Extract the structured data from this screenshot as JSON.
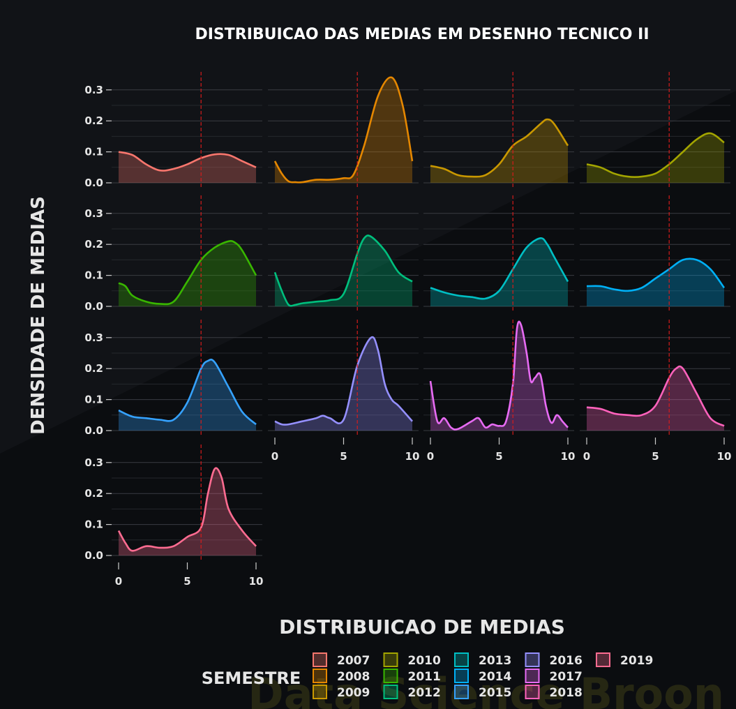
{
  "chart_data": {
    "type": "area",
    "title": "DISTRIBUICAO DAS MEDIAS EM DESENHO TECNICO II",
    "xlabel": "DISTRIBUICAO DE MEDIAS",
    "ylabel": "DENSIDADE DE MEDIAS",
    "xlim": [
      0,
      10
    ],
    "ylim": [
      0,
      0.3
    ],
    "x_ticks": [
      0,
      5,
      10
    ],
    "y_ticks": [
      0.0,
      0.1,
      0.2,
      0.3
    ],
    "y_tick_labels": [
      "0.0",
      "0.1",
      "0.2",
      "0.3"
    ],
    "reference_line_x": 6,
    "legend_title": "SEMESTRE",
    "watermark": "Data Science Broon",
    "series": [
      {
        "name": "2007",
        "color": "#F8766D",
        "x": [
          0,
          1,
          2,
          3,
          4,
          5,
          6,
          7,
          8,
          9,
          10
        ],
        "y": [
          0.1,
          0.09,
          0.06,
          0.04,
          0.045,
          0.06,
          0.08,
          0.092,
          0.09,
          0.07,
          0.05
        ]
      },
      {
        "name": "2008",
        "color": "#E58700",
        "x": [
          0,
          0.5,
          1,
          1.5,
          2,
          3,
          4,
          5,
          5.7,
          6.5,
          7.5,
          8.5,
          9.3,
          10
        ],
        "y": [
          0.07,
          0.03,
          0.005,
          0.002,
          0.002,
          0.01,
          0.01,
          0.015,
          0.025,
          0.12,
          0.28,
          0.34,
          0.25,
          0.07
        ]
      },
      {
        "name": "2009",
        "color": "#C99800",
        "x": [
          0,
          1,
          2,
          3,
          4,
          5,
          6,
          7,
          8,
          8.5,
          9,
          10
        ],
        "y": [
          0.055,
          0.045,
          0.025,
          0.02,
          0.025,
          0.06,
          0.12,
          0.15,
          0.19,
          0.205,
          0.19,
          0.12
        ]
      },
      {
        "name": "2010",
        "color": "#A3A500",
        "x": [
          0,
          1,
          2,
          3,
          4,
          5,
          6,
          7,
          8,
          9,
          10
        ],
        "y": [
          0.06,
          0.05,
          0.03,
          0.02,
          0.02,
          0.03,
          0.06,
          0.1,
          0.14,
          0.16,
          0.13
        ]
      },
      {
        "name": "2011",
        "color": "#39B600",
        "x": [
          0,
          0.5,
          1,
          2,
          3,
          4,
          5,
          6,
          7,
          8,
          8.5,
          9,
          10
        ],
        "y": [
          0.075,
          0.065,
          0.035,
          0.015,
          0.008,
          0.015,
          0.08,
          0.15,
          0.19,
          0.21,
          0.205,
          0.18,
          0.1
        ]
      },
      {
        "name": "2012",
        "color": "#00BF7D",
        "x": [
          0,
          0.5,
          1,
          1.5,
          2,
          3,
          4,
          5,
          6,
          6.5,
          7,
          8,
          9,
          10
        ],
        "y": [
          0.11,
          0.05,
          0.005,
          0.005,
          0.01,
          0.015,
          0.02,
          0.04,
          0.17,
          0.22,
          0.225,
          0.18,
          0.11,
          0.08
        ]
      },
      {
        "name": "2013",
        "color": "#00BFC4",
        "x": [
          0,
          1,
          2,
          3,
          4,
          5,
          6,
          7,
          8,
          8.5,
          9,
          10
        ],
        "y": [
          0.06,
          0.045,
          0.035,
          0.03,
          0.025,
          0.05,
          0.12,
          0.19,
          0.22,
          0.2,
          0.16,
          0.08
        ]
      },
      {
        "name": "2014",
        "color": "#00B0F6",
        "x": [
          0,
          1,
          2,
          3,
          4,
          5,
          6,
          7,
          8,
          9,
          10
        ],
        "y": [
          0.065,
          0.065,
          0.055,
          0.05,
          0.06,
          0.09,
          0.12,
          0.15,
          0.15,
          0.12,
          0.06
        ]
      },
      {
        "name": "2015",
        "color": "#35A2FF",
        "x": [
          0,
          1,
          2,
          3,
          4,
          5,
          6,
          6.5,
          7,
          8,
          9,
          10
        ],
        "y": [
          0.065,
          0.045,
          0.04,
          0.035,
          0.035,
          0.09,
          0.2,
          0.225,
          0.22,
          0.14,
          0.06,
          0.02
        ]
      },
      {
        "name": "2016",
        "color": "#9590FF",
        "x": [
          0,
          0.5,
          1,
          2,
          3,
          3.5,
          4,
          5,
          6,
          7,
          7.5,
          8,
          8.5,
          9,
          10
        ],
        "y": [
          0.03,
          0.02,
          0.02,
          0.03,
          0.04,
          0.048,
          0.04,
          0.035,
          0.21,
          0.3,
          0.26,
          0.15,
          0.1,
          0.08,
          0.03
        ]
      },
      {
        "name": "2017",
        "color": "#E76BF3",
        "x": [
          0,
          0.5,
          1,
          1.5,
          2,
          3,
          3.5,
          4,
          4.5,
          5,
          5.5,
          6,
          6.3,
          6.6,
          7,
          7.3,
          7.6,
          8,
          8.4,
          8.8,
          9.2,
          9.6,
          10
        ],
        "y": [
          0.16,
          0.03,
          0.04,
          0.01,
          0.005,
          0.03,
          0.04,
          0.01,
          0.02,
          0.015,
          0.03,
          0.15,
          0.33,
          0.34,
          0.25,
          0.16,
          0.17,
          0.18,
          0.08,
          0.025,
          0.05,
          0.03,
          0.01
        ]
      },
      {
        "name": "2018",
        "color": "#FF62BC",
        "x": [
          0,
          1,
          2,
          3,
          4,
          5,
          6,
          6.5,
          7,
          8,
          9,
          10
        ],
        "y": [
          0.075,
          0.07,
          0.055,
          0.05,
          0.05,
          0.08,
          0.17,
          0.2,
          0.2,
          0.12,
          0.04,
          0.015
        ]
      },
      {
        "name": "2019",
        "color": "#FF6C91",
        "x": [
          0,
          0.5,
          1,
          2,
          3,
          4,
          5,
          6,
          6.5,
          7,
          7.5,
          8,
          9,
          10
        ],
        "y": [
          0.08,
          0.04,
          0.015,
          0.03,
          0.025,
          0.03,
          0.06,
          0.09,
          0.2,
          0.28,
          0.25,
          0.15,
          0.08,
          0.03
        ]
      }
    ]
  }
}
